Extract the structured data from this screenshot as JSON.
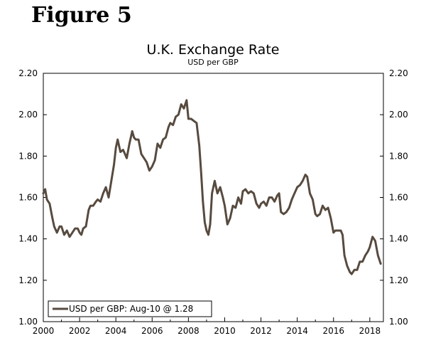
{
  "figure_label": "Figure 5",
  "chart_data": {
    "type": "line",
    "title": "U.K. Exchange Rate",
    "subtitle": "USD per GBP",
    "xlabel": "",
    "ylabel": "",
    "xlim": [
      2000,
      2018.75
    ],
    "ylim": [
      1.0,
      2.2
    ],
    "x_ticks": [
      2000,
      2002,
      2004,
      2006,
      2008,
      2010,
      2012,
      2014,
      2016,
      2018
    ],
    "x_tick_labels": [
      "2000",
      "2002",
      "2004",
      "2006",
      "2008",
      "2010",
      "2012",
      "2014",
      "2016",
      "2018"
    ],
    "y_ticks": [
      1.0,
      1.2,
      1.4,
      1.6,
      1.8,
      2.0,
      2.2
    ],
    "y_tick_labels": [
      "1.00",
      "1.20",
      "1.40",
      "1.60",
      "1.80",
      "2.00",
      "2.20"
    ],
    "legend": {
      "position": "bottom-left",
      "label": "USD per GBP: Aug-10 @ 1.28"
    },
    "series_color": "#574a3f",
    "series": [
      {
        "name": "USD per GBP",
        "x": [
          2000.0,
          2000.1,
          2000.2,
          2000.35,
          2000.5,
          2000.6,
          2000.75,
          2000.9,
          2001.0,
          2001.15,
          2001.3,
          2001.45,
          2001.6,
          2001.75,
          2001.9,
          2002.0,
          2002.1,
          2002.2,
          2002.35,
          2002.5,
          2002.6,
          2002.75,
          2002.9,
          2003.0,
          2003.15,
          2003.3,
          2003.45,
          2003.6,
          2003.75,
          2003.9,
          2004.0,
          2004.1,
          2004.25,
          2004.4,
          2004.5,
          2004.6,
          2004.75,
          2004.9,
          2005.0,
          2005.1,
          2005.25,
          2005.4,
          2005.55,
          2005.7,
          2005.85,
          2006.0,
          2006.15,
          2006.3,
          2006.45,
          2006.6,
          2006.75,
          2006.9,
          2007.0,
          2007.15,
          2007.3,
          2007.45,
          2007.6,
          2007.75,
          2007.9,
          2008.0,
          2008.15,
          2008.3,
          2008.45,
          2008.6,
          2008.7,
          2008.8,
          2008.9,
          2009.0,
          2009.1,
          2009.2,
          2009.3,
          2009.45,
          2009.6,
          2009.75,
          2009.9,
          2010.0,
          2010.15,
          2010.3,
          2010.45,
          2010.6,
          2010.75,
          2010.9,
          2011.0,
          2011.15,
          2011.3,
          2011.45,
          2011.6,
          2011.75,
          2011.9,
          2012.0,
          2012.15,
          2012.3,
          2012.45,
          2012.6,
          2012.75,
          2012.9,
          2013.0,
          2013.1,
          2013.25,
          2013.4,
          2013.55,
          2013.7,
          2013.85,
          2014.0,
          2014.15,
          2014.3,
          2014.45,
          2014.55,
          2014.7,
          2014.85,
          2015.0,
          2015.1,
          2015.25,
          2015.4,
          2015.55,
          2015.7,
          2015.85,
          2016.0,
          2016.1,
          2016.25,
          2016.4,
          2016.5,
          2016.6,
          2016.75,
          2016.9,
          2017.0,
          2017.15,
          2017.3,
          2017.45,
          2017.6,
          2017.75,
          2017.9,
          2018.0,
          2018.15,
          2018.3,
          2018.45,
          2018.6
        ],
        "values": [
          1.62,
          1.64,
          1.59,
          1.57,
          1.5,
          1.46,
          1.43,
          1.46,
          1.46,
          1.42,
          1.44,
          1.41,
          1.43,
          1.45,
          1.45,
          1.43,
          1.42,
          1.45,
          1.46,
          1.54,
          1.56,
          1.56,
          1.58,
          1.59,
          1.58,
          1.62,
          1.65,
          1.6,
          1.68,
          1.76,
          1.84,
          1.88,
          1.82,
          1.83,
          1.81,
          1.79,
          1.86,
          1.92,
          1.89,
          1.88,
          1.88,
          1.81,
          1.79,
          1.77,
          1.73,
          1.75,
          1.78,
          1.86,
          1.84,
          1.88,
          1.89,
          1.94,
          1.96,
          1.95,
          1.99,
          2.0,
          2.05,
          2.03,
          2.07,
          1.98,
          1.98,
          1.97,
          1.96,
          1.85,
          1.72,
          1.58,
          1.48,
          1.44,
          1.42,
          1.47,
          1.62,
          1.68,
          1.62,
          1.65,
          1.6,
          1.56,
          1.47,
          1.5,
          1.56,
          1.55,
          1.6,
          1.57,
          1.63,
          1.64,
          1.62,
          1.63,
          1.62,
          1.57,
          1.55,
          1.57,
          1.58,
          1.56,
          1.6,
          1.6,
          1.58,
          1.61,
          1.62,
          1.53,
          1.52,
          1.53,
          1.55,
          1.59,
          1.62,
          1.65,
          1.66,
          1.68,
          1.71,
          1.7,
          1.62,
          1.59,
          1.52,
          1.51,
          1.52,
          1.56,
          1.54,
          1.55,
          1.5,
          1.43,
          1.44,
          1.44,
          1.44,
          1.42,
          1.32,
          1.27,
          1.24,
          1.23,
          1.25,
          1.25,
          1.29,
          1.29,
          1.32,
          1.34,
          1.36,
          1.41,
          1.39,
          1.32,
          1.28
        ]
      }
    ]
  }
}
